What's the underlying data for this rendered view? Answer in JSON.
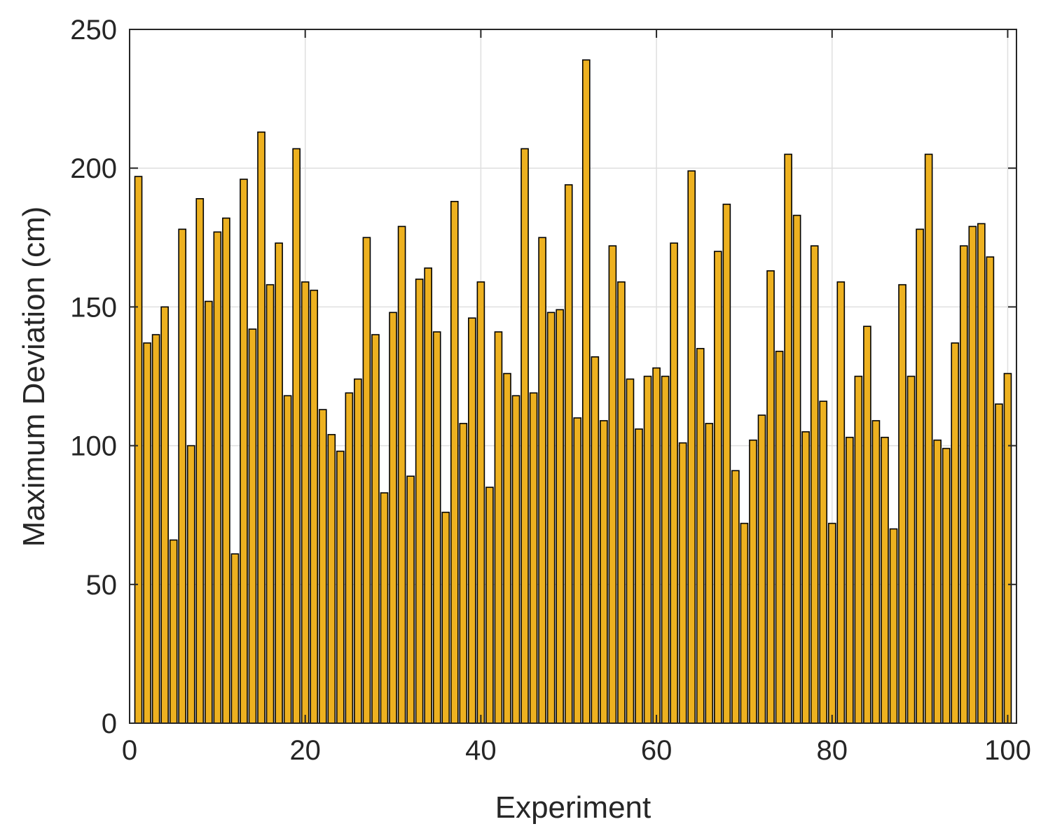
{
  "chart_data": {
    "type": "bar",
    "title": "",
    "xlabel": "Experiment",
    "ylabel": "Maximum Deviation (cm)",
    "xlim": [
      0,
      101
    ],
    "ylim": [
      0,
      250
    ],
    "xticks": [
      0,
      20,
      40,
      60,
      80,
      100
    ],
    "yticks": [
      0,
      50,
      100,
      150,
      200,
      250
    ],
    "grid": true,
    "bar_color": "#EDB120",
    "edge_color": "#000000",
    "x": [
      1,
      2,
      3,
      4,
      5,
      6,
      7,
      8,
      9,
      10,
      11,
      12,
      13,
      14,
      15,
      16,
      17,
      18,
      19,
      20,
      21,
      22,
      23,
      24,
      25,
      26,
      27,
      28,
      29,
      30,
      31,
      32,
      33,
      34,
      35,
      36,
      37,
      38,
      39,
      40,
      41,
      42,
      43,
      44,
      45,
      46,
      47,
      48,
      49,
      50,
      51,
      52,
      53,
      54,
      55,
      56,
      57,
      58,
      59,
      60,
      61,
      62,
      63,
      64,
      65,
      66,
      67,
      68,
      69,
      70,
      71,
      72,
      73,
      74,
      75,
      76,
      77,
      78,
      79,
      80,
      81,
      82,
      83,
      84,
      85,
      86,
      87,
      88,
      89,
      90,
      91,
      92,
      93,
      94,
      95,
      96,
      97,
      98,
      99,
      100
    ],
    "values": [
      197,
      137,
      140,
      150,
      66,
      178,
      100,
      189,
      152,
      177,
      182,
      61,
      196,
      142,
      213,
      158,
      173,
      118,
      207,
      159,
      156,
      113,
      104,
      98,
      119,
      124,
      175,
      140,
      83,
      148,
      179,
      89,
      160,
      164,
      141,
      76,
      188,
      108,
      146,
      159,
      85,
      141,
      126,
      118,
      207,
      119,
      175,
      148,
      149,
      194,
      110,
      239,
      132,
      109,
      172,
      159,
      124,
      106,
      125,
      128,
      125,
      173,
      101,
      199,
      135,
      108,
      170,
      187,
      91,
      72,
      102,
      111,
      163,
      134,
      205,
      183,
      105,
      172,
      116,
      72,
      159,
      103,
      125,
      143,
      109,
      103,
      70,
      158,
      125,
      178,
      205,
      102,
      99,
      137,
      172,
      179,
      180,
      168,
      115,
      126
    ]
  }
}
